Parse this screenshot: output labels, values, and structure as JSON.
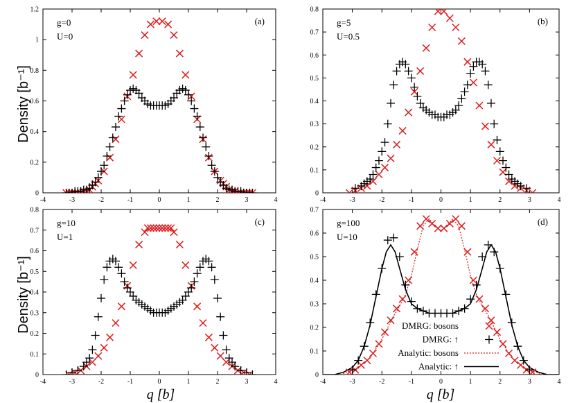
{
  "chart_data": [
    {
      "type": "scatter",
      "panel_label": "(a)",
      "params": [
        "g=0",
        "U=0"
      ],
      "xlim": [
        -4,
        4
      ],
      "ylim": [
        0,
        1.2
      ],
      "yticks": [
        "0",
        "0.2",
        "0.4",
        "0.6",
        "0.8",
        "1",
        "1.2"
      ],
      "xticks": [
        "-4",
        "-3",
        "-2",
        "-1",
        "0",
        "1",
        "2",
        "3",
        "4"
      ],
      "series": [
        {
          "name": "DMRG: bosons",
          "marker": "x",
          "color": "#dd1c1c",
          "x": [
            -3.2,
            -3.1,
            -3.0,
            -2.9,
            -2.8,
            -2.7,
            -2.6,
            -2.5,
            -2.4,
            -2.3,
            -2.2,
            -2.1,
            -1.9,
            -1.7,
            -1.5,
            -1.3,
            -1.1,
            -0.9,
            -0.7,
            -0.5,
            -0.3,
            -0.1,
            0.1,
            0.3,
            0.5,
            0.7,
            0.9,
            1.1,
            1.3,
            1.5,
            1.7,
            1.9,
            2.1,
            2.2,
            2.3,
            2.4,
            2.5,
            2.6,
            2.7,
            2.8,
            2.9,
            3.0,
            3.1,
            3.2
          ],
          "y": [
            0.0,
            0.0,
            0.0,
            0.0,
            0.0,
            0.0,
            0.01,
            0.01,
            0.02,
            0.04,
            0.06,
            0.08,
            0.14,
            0.23,
            0.35,
            0.48,
            0.63,
            0.77,
            0.91,
            1.03,
            1.1,
            1.12,
            1.12,
            1.1,
            1.03,
            0.91,
            0.77,
            0.63,
            0.48,
            0.35,
            0.23,
            0.14,
            0.08,
            0.06,
            0.04,
            0.02,
            0.01,
            0.01,
            0.0,
            0.0,
            0.0,
            0.0,
            0.0,
            0.0
          ]
        },
        {
          "name": "DMRG: ↑",
          "marker": "+",
          "color": "#000000",
          "x": [
            -3.2,
            -3.1,
            -3.0,
            -2.9,
            -2.8,
            -2.7,
            -2.6,
            -2.5,
            -2.4,
            -2.3,
            -2.2,
            -2.1,
            -2.0,
            -1.9,
            -1.8,
            -1.7,
            -1.6,
            -1.5,
            -1.4,
            -1.3,
            -1.2,
            -1.1,
            -1.0,
            -0.9,
            -0.8,
            -0.7,
            -0.6,
            -0.5,
            -0.4,
            -0.3,
            -0.2,
            -0.1,
            0.0,
            0.1,
            0.2,
            0.3,
            0.4,
            0.5,
            0.6,
            0.7,
            0.8,
            0.9,
            1.0,
            1.1,
            1.2,
            1.3,
            1.4,
            1.5,
            1.6,
            1.7,
            1.8,
            1.9,
            2.0,
            2.1,
            2.2,
            2.3,
            2.4,
            2.5,
            2.6,
            2.7,
            2.8,
            2.9,
            3.0,
            3.1,
            3.2
          ],
          "y": [
            0.0,
            0.0,
            0.0,
            0.01,
            0.01,
            0.01,
            0.02,
            0.02,
            0.03,
            0.05,
            0.07,
            0.1,
            0.14,
            0.18,
            0.24,
            0.3,
            0.36,
            0.43,
            0.5,
            0.55,
            0.6,
            0.64,
            0.67,
            0.68,
            0.67,
            0.65,
            0.62,
            0.6,
            0.58,
            0.57,
            0.57,
            0.57,
            0.57,
            0.57,
            0.57,
            0.58,
            0.6,
            0.62,
            0.65,
            0.67,
            0.68,
            0.67,
            0.64,
            0.6,
            0.55,
            0.5,
            0.43,
            0.36,
            0.3,
            0.24,
            0.18,
            0.14,
            0.1,
            0.07,
            0.05,
            0.03,
            0.02,
            0.02,
            0.01,
            0.01,
            0.01,
            0.0,
            0.0,
            0.0,
            0.0
          ]
        }
      ]
    },
    {
      "type": "scatter",
      "panel_label": "(b)",
      "params": [
        "g=5",
        "U=0.5"
      ],
      "xlim": [
        -4,
        4
      ],
      "ylim": [
        0,
        0.8
      ],
      "yticks": [
        "0",
        "0.1",
        "0.2",
        "0.3",
        "0.4",
        "0.5",
        "0.6",
        "0.7",
        "0.8"
      ],
      "xticks": [
        "-4",
        "-3",
        "-2",
        "-1",
        "0",
        "1",
        "2",
        "3",
        "4"
      ],
      "series": [
        {
          "name": "DMRG: bosons",
          "marker": "x",
          "color": "#dd1c1c",
          "x": [
            -3.1,
            -2.9,
            -2.7,
            -2.5,
            -2.3,
            -2.1,
            -1.9,
            -1.7,
            -1.5,
            -1.3,
            -1.1,
            -0.9,
            -0.7,
            -0.5,
            -0.3,
            -0.1,
            0.1,
            0.3,
            0.5,
            0.7,
            0.9,
            1.1,
            1.3,
            1.5,
            1.7,
            1.9,
            2.1,
            2.3,
            2.5,
            2.7,
            2.9,
            3.1
          ],
          "y": [
            0.0,
            0.01,
            0.02,
            0.03,
            0.05,
            0.08,
            0.11,
            0.15,
            0.21,
            0.27,
            0.35,
            0.44,
            0.53,
            0.63,
            0.72,
            0.79,
            0.79,
            0.76,
            0.72,
            0.66,
            0.57,
            0.48,
            0.38,
            0.29,
            0.21,
            0.14,
            0.09,
            0.05,
            0.03,
            0.02,
            0.01,
            0.0
          ]
        },
        {
          "name": "DMRG: ↑",
          "marker": "+",
          "color": "#000000",
          "x": [
            -2.9,
            -2.7,
            -2.6,
            -2.5,
            -2.4,
            -2.3,
            -2.2,
            -2.1,
            -2.0,
            -1.9,
            -1.8,
            -1.7,
            -1.6,
            -1.5,
            -1.4,
            -1.3,
            -1.2,
            -1.1,
            -1.0,
            -0.9,
            -0.8,
            -0.7,
            -0.6,
            -0.5,
            -0.4,
            -0.3,
            -0.2,
            -0.1,
            0.0,
            0.1,
            0.2,
            0.3,
            0.4,
            0.5,
            0.6,
            0.7,
            0.8,
            0.9,
            1.0,
            1.1,
            1.2,
            1.3,
            1.4,
            1.5,
            1.6,
            1.7,
            1.8,
            1.9,
            2.0,
            2.1,
            2.2,
            2.3,
            2.4,
            2.5,
            2.6,
            2.7,
            2.9
          ],
          "y": [
            0.02,
            0.03,
            0.04,
            0.05,
            0.06,
            0.08,
            0.11,
            0.14,
            0.18,
            0.22,
            0.3,
            0.39,
            0.47,
            0.53,
            0.56,
            0.57,
            0.56,
            0.53,
            0.5,
            0.46,
            0.42,
            0.39,
            0.37,
            0.36,
            0.35,
            0.34,
            0.34,
            0.33,
            0.33,
            0.33,
            0.34,
            0.34,
            0.35,
            0.36,
            0.38,
            0.41,
            0.44,
            0.47,
            0.52,
            0.55,
            0.57,
            0.57,
            0.56,
            0.53,
            0.47,
            0.39,
            0.3,
            0.23,
            0.18,
            0.14,
            0.11,
            0.08,
            0.06,
            0.05,
            0.04,
            0.03,
            0.02
          ]
        }
      ]
    },
    {
      "type": "scatter",
      "panel_label": "(c)",
      "params": [
        "g=10",
        "U=1"
      ],
      "xlim": [
        -4,
        4
      ],
      "ylim": [
        0,
        0.8
      ],
      "yticks": [
        "0",
        "0.1",
        "0.2",
        "0.3",
        "0.4",
        "0.5",
        "0.6",
        "0.7",
        "0.8"
      ],
      "xticks": [
        "-4",
        "-3",
        "-2",
        "-1",
        "0",
        "1",
        "2",
        "3",
        "4"
      ],
      "series": [
        {
          "name": "DMRG: bosons",
          "marker": "x",
          "color": "#dd1c1c",
          "x": [
            -3.1,
            -2.9,
            -2.7,
            -2.5,
            -2.3,
            -2.1,
            -1.9,
            -1.7,
            -1.5,
            -1.3,
            -1.1,
            -0.9,
            -0.7,
            -0.5,
            -0.4,
            -0.3,
            -0.2,
            -0.1,
            0.0,
            0.1,
            0.2,
            0.3,
            0.4,
            0.5,
            0.7,
            0.9,
            1.1,
            1.3,
            1.5,
            1.7,
            1.9,
            2.1,
            2.3,
            2.5,
            2.7,
            2.9,
            3.1
          ],
          "y": [
            0.0,
            0.01,
            0.02,
            0.04,
            0.06,
            0.09,
            0.13,
            0.18,
            0.25,
            0.33,
            0.43,
            0.53,
            0.63,
            0.69,
            0.71,
            0.71,
            0.71,
            0.71,
            0.71,
            0.71,
            0.71,
            0.71,
            0.71,
            0.69,
            0.63,
            0.53,
            0.43,
            0.33,
            0.25,
            0.18,
            0.13,
            0.09,
            0.06,
            0.04,
            0.02,
            0.01,
            0.0
          ]
        },
        {
          "name": "DMRG: ↑",
          "marker": "+",
          "color": "#000000",
          "x": [
            -3.2,
            -3.0,
            -2.8,
            -2.6,
            -2.5,
            -2.4,
            -2.3,
            -2.2,
            -2.1,
            -2.0,
            -1.9,
            -1.8,
            -1.7,
            -1.6,
            -1.5,
            -1.4,
            -1.3,
            -1.2,
            -1.1,
            -1.0,
            -0.9,
            -0.8,
            -0.7,
            -0.6,
            -0.5,
            -0.4,
            -0.3,
            -0.2,
            -0.1,
            0.0,
            0.1,
            0.2,
            0.3,
            0.4,
            0.5,
            0.6,
            0.7,
            0.8,
            0.9,
            1.0,
            1.1,
            1.2,
            1.3,
            1.4,
            1.5,
            1.6,
            1.7,
            1.8,
            1.9,
            2.0,
            2.1,
            2.2,
            2.3,
            2.4,
            2.5,
            2.6,
            2.8,
            3.0,
            3.2
          ],
          "y": [
            0.0,
            0.01,
            0.02,
            0.04,
            0.06,
            0.08,
            0.12,
            0.19,
            0.28,
            0.37,
            0.46,
            0.52,
            0.55,
            0.56,
            0.55,
            0.52,
            0.49,
            0.45,
            0.42,
            0.4,
            0.38,
            0.36,
            0.35,
            0.34,
            0.33,
            0.32,
            0.31,
            0.3,
            0.3,
            0.3,
            0.3,
            0.3,
            0.31,
            0.32,
            0.33,
            0.34,
            0.35,
            0.36,
            0.38,
            0.4,
            0.42,
            0.45,
            0.49,
            0.52,
            0.55,
            0.56,
            0.55,
            0.52,
            0.46,
            0.37,
            0.28,
            0.19,
            0.12,
            0.08,
            0.06,
            0.04,
            0.02,
            0.01,
            0.0
          ]
        }
      ]
    },
    {
      "type": "scatter",
      "panel_label": "(d)",
      "params": [
        "g=100",
        "U=10"
      ],
      "xlim": [
        -4,
        4
      ],
      "ylim": [
        0,
        0.7
      ],
      "yticks": [
        "0",
        "0.1",
        "0.2",
        "0.3",
        "0.4",
        "0.5",
        "0.6",
        "0.7"
      ],
      "xticks": [
        "-4",
        "-3",
        "-2",
        "-1",
        "0",
        "1",
        "2",
        "3",
        "4"
      ],
      "legend": [
        "DMRG: bosons",
        "DMRG: ↑",
        "Analytic: bosons",
        "Analytic: ↑"
      ],
      "series": [
        {
          "name": "DMRG: bosons",
          "marker": "x",
          "color": "#dd1c1c",
          "x": [
            -3.1,
            -2.9,
            -2.7,
            -2.5,
            -2.3,
            -2.1,
            -1.9,
            -1.7,
            -1.5,
            -1.3,
            -1.1,
            -0.9,
            -0.7,
            -0.5,
            -0.3,
            -0.1,
            0.1,
            0.3,
            0.5,
            0.7,
            0.9,
            1.1,
            1.3,
            1.5,
            1.7,
            1.9,
            2.1,
            2.3,
            2.5,
            2.7,
            2.9,
            3.1
          ],
          "y": [
            0.01,
            0.02,
            0.04,
            0.06,
            0.09,
            0.13,
            0.18,
            0.23,
            0.28,
            0.32,
            0.4,
            0.52,
            0.63,
            0.66,
            0.64,
            0.62,
            0.62,
            0.64,
            0.66,
            0.63,
            0.52,
            0.4,
            0.32,
            0.28,
            0.23,
            0.18,
            0.13,
            0.09,
            0.06,
            0.04,
            0.02,
            0.01
          ]
        },
        {
          "name": "DMRG: ↑",
          "marker": "+",
          "color": "#000000",
          "x": [
            -3.0,
            -2.8,
            -2.6,
            -2.4,
            -2.2,
            -2.0,
            -1.8,
            -1.6,
            -1.4,
            -1.2,
            -1.0,
            -0.8,
            -0.6,
            -0.4,
            -0.2,
            0.0,
            0.2,
            0.4,
            0.6,
            0.8,
            1.0,
            1.2,
            1.4,
            1.6,
            1.8,
            2.0,
            2.2,
            2.4,
            2.6,
            2.8,
            3.0
          ],
          "y": [
            0.02,
            0.06,
            0.12,
            0.22,
            0.34,
            0.45,
            0.57,
            0.58,
            0.5,
            0.38,
            0.31,
            0.28,
            0.27,
            0.26,
            0.26,
            0.26,
            0.26,
            0.26,
            0.27,
            0.28,
            0.32,
            0.38,
            0.5,
            0.55,
            0.52,
            0.45,
            0.34,
            0.22,
            0.12,
            0.06,
            0.02
          ]
        },
        {
          "name": "Analytic: bosons",
          "type": "dotted-line",
          "color": "#dd1c1c",
          "x": [
            -3.4,
            -3.2,
            -3.0,
            -2.8,
            -2.6,
            -2.4,
            -2.2,
            -2.0,
            -1.8,
            -1.6,
            -1.4,
            -1.2,
            -1.0,
            -0.8,
            -0.6,
            -0.4,
            -0.2,
            0.0,
            0.2,
            0.4,
            0.6,
            0.8,
            1.0,
            1.2,
            1.4,
            1.6,
            1.8,
            2.0,
            2.2,
            2.4,
            2.6,
            2.8,
            3.0,
            3.2,
            3.4
          ],
          "y": [
            0.0,
            0.01,
            0.02,
            0.03,
            0.05,
            0.07,
            0.11,
            0.15,
            0.2,
            0.25,
            0.29,
            0.34,
            0.42,
            0.53,
            0.63,
            0.66,
            0.63,
            0.61,
            0.63,
            0.66,
            0.63,
            0.53,
            0.42,
            0.34,
            0.29,
            0.25,
            0.2,
            0.15,
            0.11,
            0.07,
            0.05,
            0.03,
            0.02,
            0.01,
            0.0
          ]
        },
        {
          "name": "Analytic: ↑",
          "type": "line",
          "color": "#000000",
          "x": [
            -4.0,
            -3.6,
            -3.3,
            -3.0,
            -2.8,
            -2.6,
            -2.4,
            -2.2,
            -2.0,
            -1.85,
            -1.7,
            -1.55,
            -1.4,
            -1.2,
            -1.0,
            -0.8,
            -0.6,
            -0.4,
            -0.2,
            0.0,
            0.2,
            0.4,
            0.6,
            0.8,
            1.0,
            1.2,
            1.4,
            1.55,
            1.7,
            1.85,
            2.0,
            2.2,
            2.4,
            2.6,
            2.8,
            3.0,
            3.3,
            3.6,
            4.0
          ],
          "y": [
            0.0,
            0.0,
            0.01,
            0.03,
            0.06,
            0.12,
            0.21,
            0.33,
            0.45,
            0.52,
            0.55,
            0.52,
            0.45,
            0.36,
            0.3,
            0.28,
            0.27,
            0.26,
            0.26,
            0.26,
            0.26,
            0.26,
            0.27,
            0.28,
            0.3,
            0.36,
            0.45,
            0.52,
            0.55,
            0.52,
            0.45,
            0.33,
            0.21,
            0.12,
            0.06,
            0.03,
            0.01,
            0.0,
            0.0
          ]
        }
      ]
    }
  ],
  "axis_labels": {
    "ylabel_top": "Density [b⁻¹]",
    "ylabel_bottom": "Density [b⁻¹]",
    "xlabel_left": "q [b]",
    "xlabel_right": "q [b]"
  }
}
